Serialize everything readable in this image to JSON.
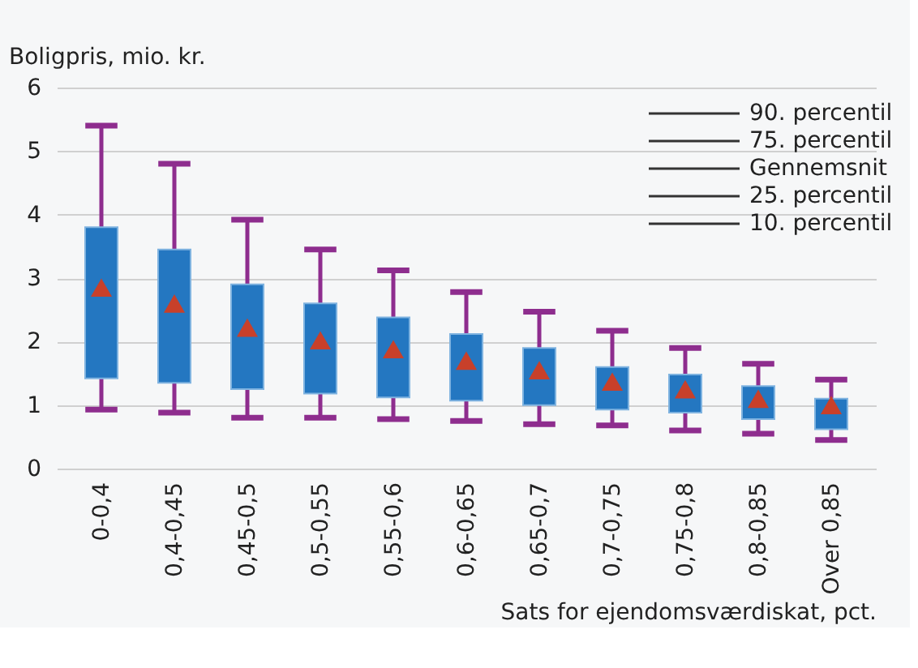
{
  "chart_data": {
    "type": "box",
    "ylabel": "Boligpris, mio. kr.",
    "xlabel": "Sats for ejendomsværdiskat, pct.",
    "categories": [
      "0-0,4",
      "0,4-0,45",
      "0,45-0,5",
      "0,5-0,55",
      "0,55-0,6",
      "0,6-0,65",
      "0,65-0,7",
      "0,7-0,75",
      "0,75-0,8",
      "0,8-0,85",
      "Over 0,85"
    ],
    "series": [
      {
        "color": "#2477c1",
        "boxes": [
          {
            "low": 0.93,
            "q1": 1.42,
            "q3": 3.8,
            "high": 5.4,
            "mean": 2.85
          },
          {
            "low": 0.88,
            "q1": 1.35,
            "q3": 3.45,
            "high": 4.8,
            "mean": 2.6
          },
          {
            "low": 0.8,
            "q1": 1.25,
            "q3": 2.9,
            "high": 3.92,
            "mean": 2.22
          },
          {
            "low": 0.8,
            "q1": 1.18,
            "q3": 2.6,
            "high": 3.45,
            "mean": 2.02
          },
          {
            "low": 0.78,
            "q1": 1.12,
            "q3": 2.38,
            "high": 3.12,
            "mean": 1.88
          },
          {
            "low": 0.75,
            "q1": 1.07,
            "q3": 2.12,
            "high": 2.78,
            "mean": 1.7
          },
          {
            "low": 0.7,
            "q1": 1.0,
            "q3": 1.9,
            "high": 2.47,
            "mean": 1.55
          },
          {
            "low": 0.68,
            "q1": 0.93,
            "q3": 1.6,
            "high": 2.17,
            "mean": 1.37
          },
          {
            "low": 0.6,
            "q1": 0.88,
            "q3": 1.48,
            "high": 1.9,
            "mean": 1.25
          },
          {
            "low": 0.55,
            "q1": 0.78,
            "q3": 1.3,
            "high": 1.65,
            "mean": 1.1
          },
          {
            "low": 0.45,
            "q1": 0.62,
            "q3": 1.1,
            "high": 1.4,
            "mean": 1.0
          }
        ]
      }
    ],
    "ylim": [
      0,
      6
    ],
    "yticks": [
      0,
      1,
      2,
      3,
      4,
      5,
      6
    ],
    "grid": "y",
    "annotations": [
      "90. percentil",
      "75. percentil",
      "Gennemsnit",
      "25. percentil",
      "10. percentil"
    ]
  }
}
